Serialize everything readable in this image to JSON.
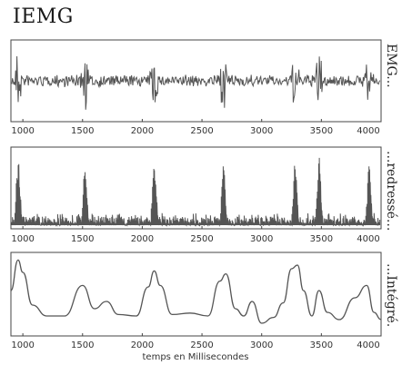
{
  "title": "IEMG",
  "chart_data": [
    {
      "type": "line",
      "series_label": "EMG...",
      "xlim": [
        900,
        4000
      ],
      "xticks": [
        1000,
        1500,
        2000,
        2500,
        3000,
        3500,
        4000
      ],
      "tick_labels": [
        "1000",
        "1500",
        "2000",
        "2500",
        "3000",
        "3500",
        "4000"
      ],
      "signal": "raw bipolar EMG, baseline noise with bursts",
      "bursts_ms": [
        960,
        1520,
        2100,
        2680,
        3280,
        3480,
        3900
      ]
    },
    {
      "type": "line",
      "series_label": "...redressé...",
      "xlim": [
        900,
        4000
      ],
      "xticks": [
        1000,
        1500,
        2000,
        2500,
        3000,
        3500,
        4000
      ],
      "tick_labels": [
        "1000",
        "1500",
        "2000",
        "2500",
        "3000",
        "3500",
        "4000"
      ],
      "signal": "rectified EMG, spikes at bursts",
      "bursts_ms": [
        960,
        1520,
        2100,
        2680,
        3280,
        3480,
        3900
      ]
    },
    {
      "type": "line",
      "series_label": "...Intégré.",
      "xlabel": "temps en Millisecondes",
      "xlim": [
        900,
        4000
      ],
      "xticks": [
        1000,
        1500,
        2000,
        2500,
        3000,
        3500,
        4000
      ],
      "tick_labels": [
        "1000",
        "1500",
        "2000",
        "2500",
        "3000",
        "3500",
        "4000"
      ],
      "x": [
        900,
        960,
        1000,
        1080,
        1200,
        1350,
        1500,
        1600,
        1700,
        1800,
        1950,
        2050,
        2100,
        2150,
        2250,
        2400,
        2550,
        2650,
        2700,
        2780,
        2850,
        2920,
        3000,
        3100,
        3180,
        3250,
        3300,
        3350,
        3420,
        3480,
        3550,
        3650,
        3780,
        3880,
        3940,
        4000
      ],
      "y": [
        0.55,
        0.97,
        0.8,
        0.35,
        0.2,
        0.2,
        0.62,
        0.3,
        0.4,
        0.22,
        0.2,
        0.6,
        0.82,
        0.62,
        0.22,
        0.24,
        0.2,
        0.68,
        0.78,
        0.3,
        0.2,
        0.4,
        0.1,
        0.18,
        0.38,
        0.85,
        0.9,
        0.55,
        0.2,
        0.55,
        0.25,
        0.15,
        0.45,
        0.62,
        0.25,
        0.15
      ]
    }
  ]
}
